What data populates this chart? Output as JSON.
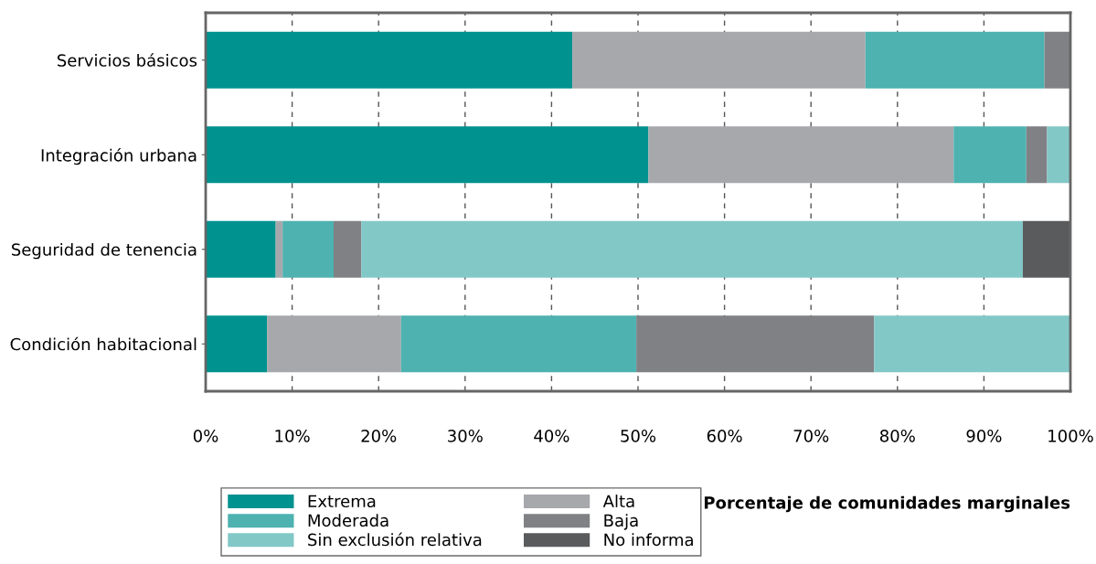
{
  "chart_data": {
    "type": "bar",
    "orientation": "horizontal",
    "stacked": true,
    "categories": [
      "Servicios básicos",
      "Integración urbana",
      "Seguridad de tenencia",
      "Condición habitacional"
    ],
    "series": [
      {
        "name": "Extrema",
        "color": "#00928f",
        "values": [
          42.4,
          51.2,
          8.1,
          7.1
        ]
      },
      {
        "name": "Alta",
        "color": "#a7a8ac",
        "values": [
          33.9,
          35.3,
          0.8,
          15.5
        ]
      },
      {
        "name": "Moderada",
        "color": "#4db2b0",
        "values": [
          20.7,
          8.4,
          5.9,
          27.2
        ]
      },
      {
        "name": "Baja",
        "color": "#808185",
        "values": [
          3.0,
          2.4,
          3.2,
          27.5
        ]
      },
      {
        "name": "Sin exclusión relativa",
        "color": "#82c8c7",
        "values": [
          0,
          2.7,
          76.5,
          22.7
        ]
      },
      {
        "name": "No informa",
        "color": "#5a5b5d",
        "values": [
          0,
          0,
          5.5,
          0
        ]
      }
    ],
    "xlim": [
      0,
      100
    ],
    "xticks": [
      {
        "value": 0,
        "label": "0%"
      },
      {
        "value": 10,
        "label": "10%"
      },
      {
        "value": 20,
        "label": "20%"
      },
      {
        "value": 30,
        "label": "30%"
      },
      {
        "value": 40,
        "label": "40%"
      },
      {
        "value": 50,
        "label": "50%"
      },
      {
        "value": 60,
        "label": "60%"
      },
      {
        "value": 70,
        "label": "70%"
      },
      {
        "value": 80,
        "label": "80%"
      },
      {
        "value": 90,
        "label": "90%"
      },
      {
        "value": 100,
        "label": "100%"
      }
    ],
    "xlabel": "Porcentaje de comunidades marginales",
    "grid": "x",
    "legend": "bottom left"
  }
}
